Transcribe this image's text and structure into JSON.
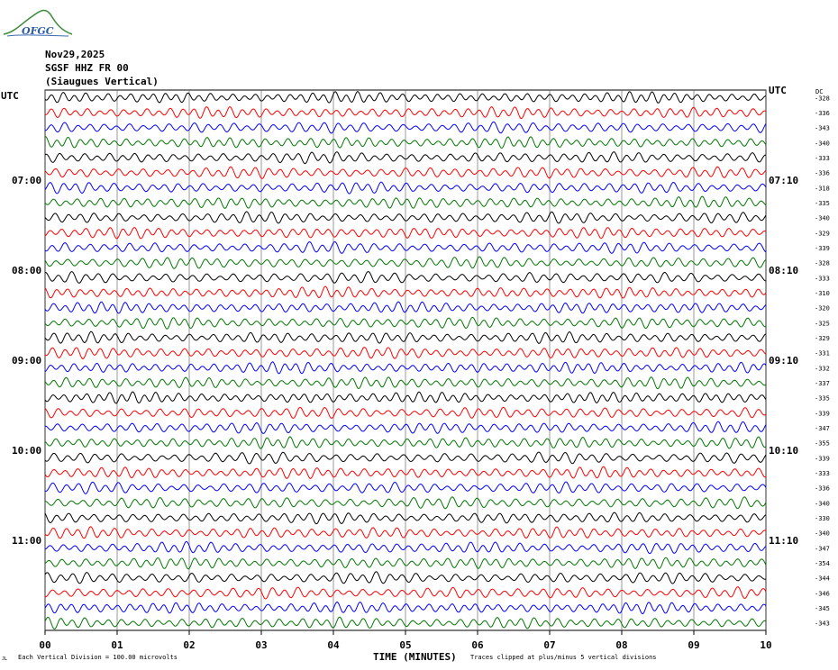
{
  "logo": {
    "text": "OFGC"
  },
  "header": {
    "date": "Nov29,2025",
    "station": "SGSF HHZ FR 00",
    "location": "(Siaugues Vertical)"
  },
  "labels": {
    "left_utc": "UTC",
    "right_utc": "UTC",
    "dc": "DC"
  },
  "footer": {
    "xlabel": "TIME (MINUTES)",
    "scale_note": "Each Vertical Division =  100.00 microvolts",
    "clip_note": "Traces clipped at plus/minus 5 vertical divisions",
    "corner_mark": "JL"
  },
  "chart_data": {
    "type": "line",
    "title": "",
    "xlabel": "TIME (MINUTES)",
    "ylabel": "",
    "xlim": [
      0,
      10
    ],
    "x_ticks": [
      "00",
      "01",
      "02",
      "03",
      "04",
      "05",
      "06",
      "07",
      "08",
      "09",
      "10"
    ],
    "trace_colors": [
      "#000000",
      "#ff0000",
      "#0000ff",
      "#007700"
    ],
    "trace_count": 36,
    "left_hour_labels": [
      {
        "row": 6,
        "label": "07:00"
      },
      {
        "row": 12,
        "label": "08:00"
      },
      {
        "row": 18,
        "label": "09:00"
      },
      {
        "row": 24,
        "label": "10:00"
      },
      {
        "row": 30,
        "label": "11:00"
      }
    ],
    "right_hour_labels": [
      {
        "row": 0,
        "label": "UTC"
      },
      {
        "row": 6,
        "label": "07:10"
      },
      {
        "row": 12,
        "label": "08:10"
      },
      {
        "row": 18,
        "label": "09:10"
      },
      {
        "row": 24,
        "label": "10:10"
      },
      {
        "row": 30,
        "label": "11:10"
      }
    ],
    "dc_offsets": [
      -328,
      -336,
      -343,
      -340,
      -333,
      -336,
      -318,
      -335,
      -340,
      -329,
      -339,
      -328,
      -333,
      -310,
      -320,
      -325,
      -329,
      -331,
      -332,
      -337,
      -335,
      -339,
      -347,
      -355,
      -339,
      -333,
      -336,
      -340,
      -330,
      -340,
      -347,
      -354,
      -344,
      -346,
      -345,
      -343
    ]
  }
}
